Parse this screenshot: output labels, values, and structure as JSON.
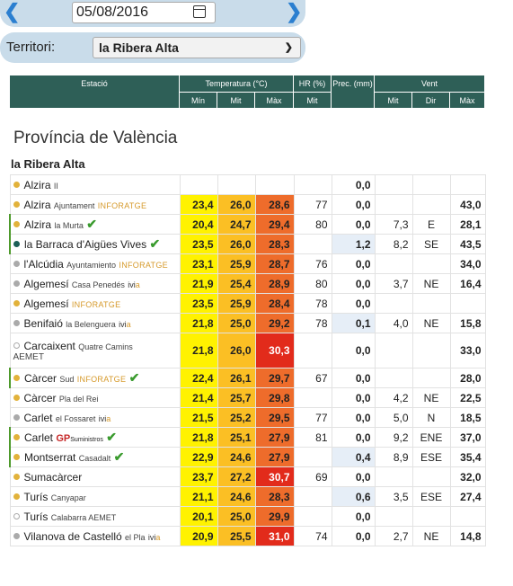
{
  "date": {
    "value": "05/08/2016"
  },
  "territory": {
    "label": "Territori:",
    "selected": "la Ribera Alta"
  },
  "headers": {
    "estacio": "Estació",
    "temperatura": "Temperatura (°C)",
    "hr": "HR (%)",
    "prec": "Prec. (mm)",
    "vent": "Vent",
    "min": "Mín",
    "mit": "Mit",
    "max": "Màx",
    "hr_mit": "Mit",
    "vent_mit": "Mit",
    "vent_dir": "Dir",
    "vent_max": "Màx"
  },
  "province": "Província de València",
  "region": "la Ribera Alta",
  "rows": [
    {
      "name": "Alzira",
      "sub": "II",
      "min": "",
      "mit": "",
      "max": "",
      "hr": "",
      "prec": "0,0",
      "vmit": "",
      "dir": "",
      "vmax": ""
    },
    {
      "name": "Alzira",
      "sub": "Ajuntament",
      "info": "INFORATGE",
      "min": "23,4",
      "mit": "26,0",
      "max": "28,6",
      "hr": "77",
      "prec": "0,0",
      "vmit": "",
      "dir": "",
      "vmax": "43,0"
    },
    {
      "name": "Alzira",
      "sub": "la Murta",
      "min": "20,4",
      "mit": "24,7",
      "max": "29,4",
      "hr": "80",
      "prec": "0,0",
      "vmit": "7,3",
      "dir": "E",
      "vmax": "28,1"
    },
    {
      "name": "la Barraca d'Aigües Vives",
      "min": "23,5",
      "mit": "26,0",
      "max": "28,3",
      "hr": "",
      "prec": "1,2",
      "vmit": "8,2",
      "dir": "SE",
      "vmax": "43,5"
    },
    {
      "name": "l'Alcúdia",
      "sub": "Ayuntamiento",
      "info": "INFORATGE",
      "min": "23,1",
      "mit": "25,9",
      "max": "28,7",
      "hr": "76",
      "prec": "0,0",
      "vmit": "",
      "dir": "",
      "vmax": "34,0"
    },
    {
      "name": "Algemesí",
      "sub": "Casa Penedés",
      "ivi": "ivi",
      "ivia": "a",
      "min": "21,9",
      "mit": "25,4",
      "max": "28,9",
      "hr": "80",
      "prec": "0,0",
      "vmit": "3,7",
      "dir": "NE",
      "vmax": "16,4"
    },
    {
      "name": "Algemesí",
      "info": "INFORATGE",
      "min": "23,5",
      "mit": "25,9",
      "max": "28,4",
      "hr": "78",
      "prec": "0,0",
      "vmit": "",
      "dir": "",
      "vmax": ""
    },
    {
      "name": "Benifaió",
      "sub": "la Belenguera",
      "ivi": "ivi",
      "ivia": "a",
      "min": "21,8",
      "mit": "25,0",
      "max": "29,2",
      "hr": "78",
      "prec": "0,1",
      "vmit": "4,0",
      "dir": "NE",
      "vmax": "15,8"
    },
    {
      "name": "Carcaixent",
      "sub": "Quatre Camins",
      "aemet": "AEMET",
      "min": "21,8",
      "mit": "26,0",
      "max": "30,3",
      "hr": "",
      "prec": "0,0",
      "vmit": "",
      "dir": "",
      "vmax": "33,0"
    },
    {
      "name": "Càrcer",
      "sub": "Sud",
      "info": "INFORATGE",
      "min": "22,4",
      "mit": "26,1",
      "max": "29,7",
      "hr": "67",
      "prec": "0,0",
      "vmit": "",
      "dir": "",
      "vmax": "28,0"
    },
    {
      "name": "Càrcer",
      "sub": "Pla del Rei",
      "min": "21,4",
      "mit": "25,7",
      "max": "29,8",
      "hr": "",
      "prec": "0,0",
      "vmit": "4,2",
      "dir": "NE",
      "vmax": "22,5"
    },
    {
      "name": "Carlet",
      "sub": "el Fossaret",
      "ivi": "ivi",
      "ivia": "a",
      "min": "21,5",
      "mit": "25,2",
      "max": "29,5",
      "hr": "77",
      "prec": "0,0",
      "vmit": "5,0",
      "dir": "N",
      "vmax": "18,5"
    },
    {
      "name": "Carlet",
      "gp": "GP",
      "gpsub": "Suministros",
      "min": "21,8",
      "mit": "25,1",
      "max": "27,9",
      "hr": "81",
      "prec": "0,0",
      "vmit": "9,2",
      "dir": "ENE",
      "vmax": "37,0"
    },
    {
      "name": "Montserrat",
      "sub": "Casadalt",
      "min": "22,9",
      "mit": "24,6",
      "max": "27,9",
      "hr": "",
      "prec": "0,4",
      "vmit": "8,9",
      "dir": "ESE",
      "vmax": "35,4"
    },
    {
      "name": "Sumacàrcer",
      "min": "23,7",
      "mit": "27,2",
      "max": "30,7",
      "hr": "69",
      "prec": "0,0",
      "vmit": "",
      "dir": "",
      "vmax": "32,0"
    },
    {
      "name": "Turís",
      "sub": "Canyapar",
      "min": "21,1",
      "mit": "24,6",
      "max": "28,3",
      "hr": "",
      "prec": "0,6",
      "vmit": "3,5",
      "dir": "ESE",
      "vmax": "27,4"
    },
    {
      "name": "Turís",
      "sub": "Calabarra AEMET",
      "min": "20,1",
      "mit": "25,0",
      "max": "29,9",
      "hr": "",
      "prec": "0,0",
      "vmit": "",
      "dir": "",
      "vmax": ""
    },
    {
      "name": "Vilanova de Castelló",
      "sub": "el Pla",
      "ivi": "ivi",
      "ivia": "a",
      "min": "20,9",
      "mit": "25,5",
      "max": "31,0",
      "hr": "74",
      "prec": "0,0",
      "vmit": "2,7",
      "dir": "NE",
      "vmax": "14,8"
    }
  ]
}
